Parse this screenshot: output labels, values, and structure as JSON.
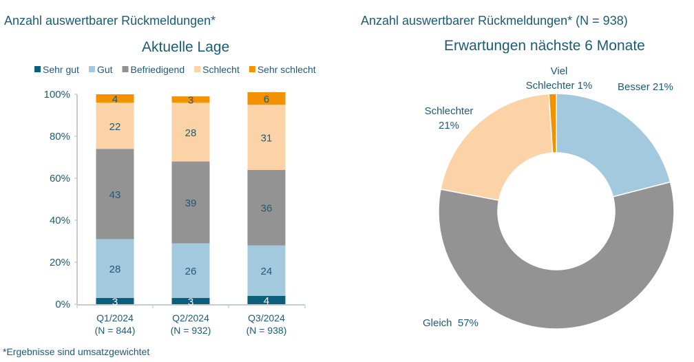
{
  "left_header": "Anzahl auswertbarer Rückmeldungen*",
  "right_header": "Anzahl auswertbarer Rückmeldungen* (N = 938)",
  "footnote": "*Ergebnisse sind umsatzgewichtet",
  "chart_data": [
    {
      "type": "bar",
      "stacked": true,
      "title": "Aktuelle Lage",
      "categories": [
        "Q1/2024",
        "Q2/2024",
        "Q3/2024"
      ],
      "category_sublabels": [
        "(N = 844)",
        "(N = 932)",
        "(N = 938)"
      ],
      "ylim": [
        0,
        100
      ],
      "yticks": [
        "0%",
        "20%",
        "40%",
        "60%",
        "80%",
        "100%"
      ],
      "legend_position": "top",
      "series": [
        {
          "name": "Sehr gut",
          "color": "#0b5f7a",
          "label_color": "#ffffff",
          "values": [
            3,
            3,
            4
          ]
        },
        {
          "name": "Gut",
          "color": "#a3c9df",
          "label_color": "#1d5a73",
          "values": [
            28,
            26,
            24
          ]
        },
        {
          "name": "Befriedigend",
          "color": "#939393",
          "label_color": "#1d5a73",
          "values": [
            43,
            39,
            36
          ]
        },
        {
          "name": "Schlecht",
          "color": "#fcd3a6",
          "label_color": "#1d5a73",
          "values": [
            22,
            28,
            31
          ]
        },
        {
          "name": "Sehr schlecht",
          "color": "#f39200",
          "label_color": "#1d5a73",
          "values": [
            4,
            3,
            6
          ]
        }
      ]
    },
    {
      "type": "pie",
      "donut": true,
      "title": "Erwartungen nächste 6 Monate",
      "slices": [
        {
          "label": "Besser 21%",
          "value": 21,
          "color": "#a3c9df"
        },
        {
          "label": "Gleich  57%",
          "value": 57,
          "color": "#939393"
        },
        {
          "label": "Schlechter 21%",
          "value": 21,
          "color": "#fcd3a6"
        },
        {
          "label": "Viel Schlechter 1%",
          "value": 1,
          "color": "#f39200"
        }
      ]
    }
  ]
}
